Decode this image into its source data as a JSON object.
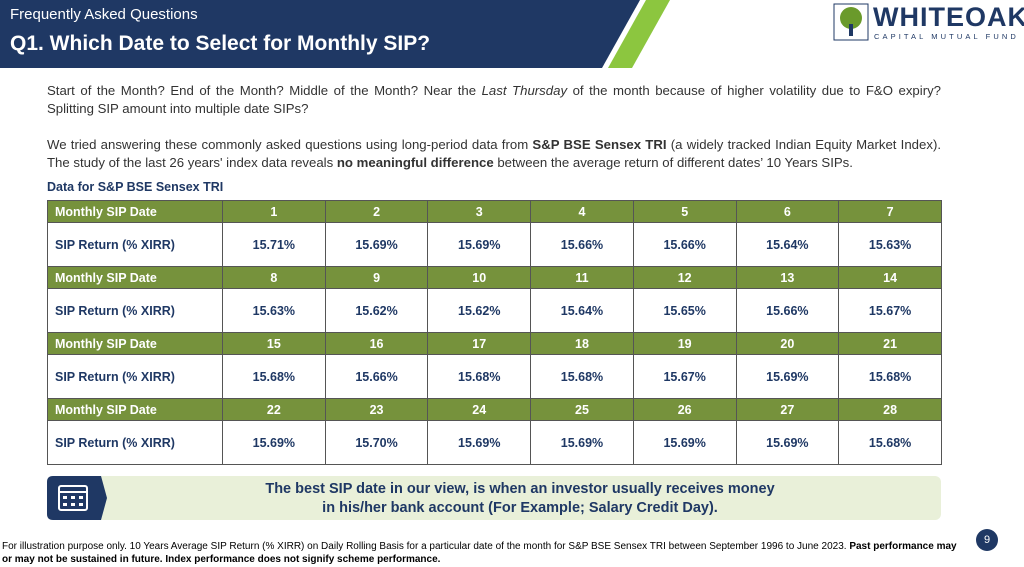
{
  "header": {
    "kicker": "Frequently Asked Questions",
    "title": "Q1. Which Date to Select for Monthly SIP?"
  },
  "logo": {
    "name": "WHITEOAK",
    "tagline": "CAPITAL MUTUAL FUND"
  },
  "paragraphs": [
    [
      "Start of the Month? End of the Month? Middle of the Month? Near the ",
      "Last Thursday",
      " of the month because of higher volatility due to F&O expiry? Splitting SIP amount into multiple date SIPs?"
    ],
    [
      "We tried answering these commonly asked questions using long-period data from ",
      "S&P BSE Sensex TRI",
      " (a widely tracked Indian Equity Market Index). The study of the last 26 years' index data reveals ",
      "no meaningful difference",
      " between the average return of different dates’ 10 Years SIPs."
    ]
  ],
  "table": {
    "caption": "Data for S&P BSE Sensex TRI",
    "blocks": [
      {
        "date_label": "Monthly SIP Date",
        "dates": [
          1,
          2,
          3,
          4,
          5,
          6,
          7
        ],
        "return_label": "SIP Return (% XIRR)",
        "returns": [
          "15.71%",
          "15.69%",
          "15.69%",
          "15.66%",
          "15.66%",
          "15.64%",
          "15.63%"
        ]
      },
      {
        "date_label": "Monthly SIP Date",
        "dates": [
          8,
          9,
          10,
          11,
          12,
          13,
          14
        ],
        "return_label": "SIP Return (% XIRR)",
        "returns": [
          "15.63%",
          "15.62%",
          "15.62%",
          "15.64%",
          "15.65%",
          "15.66%",
          "15.67%"
        ]
      },
      {
        "date_label": "Monthly SIP Date",
        "dates": [
          15,
          16,
          17,
          18,
          19,
          20,
          21
        ],
        "return_label": "SIP Return (% XIRR)",
        "returns": [
          "15.68%",
          "15.66%",
          "15.68%",
          "15.68%",
          "15.67%",
          "15.69%",
          "15.68%"
        ]
      },
      {
        "date_label": "Monthly SIP Date",
        "dates": [
          22,
          23,
          24,
          25,
          26,
          27,
          28
        ],
        "return_label": "SIP Return (% XIRR)",
        "returns": [
          "15.69%",
          "15.70%",
          "15.69%",
          "15.69%",
          "15.69%",
          "15.69%",
          "15.68%"
        ]
      }
    ]
  },
  "callout": [
    "The best SIP date in our view, is when an investor usually receives money",
    "in his/her bank account (For Example; Salary Credit Day)."
  ],
  "footnote": [
    "For illustration purpose only. 10 Years Average SIP Return (% XIRR) on Daily Rolling Basis for a particular date of the month for S&P BSE Sensex TRI between September 1996 to June 2023. ",
    "Past performance may or may not be sustained in future. Index performance does not signify scheme performance."
  ],
  "page_number": 9
}
